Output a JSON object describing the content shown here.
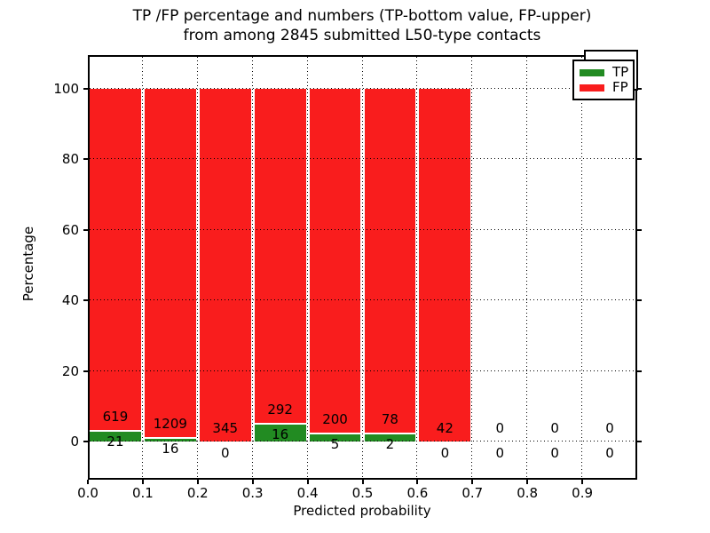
{
  "figure": {
    "title_line1": "TP /FP percentage and numbers (TP-bottom value, FP-upper)",
    "title_line2": "from among 2845 submitted L50-type contacts",
    "xlabel": "Predicted probability",
    "ylabel": "Percentage"
  },
  "legend": {
    "items": [
      {
        "label": "TP",
        "color": "#228B22"
      },
      {
        "label": "FP",
        "color": "#f91d1d"
      }
    ]
  },
  "chart_data": {
    "type": "bar",
    "stacked": true,
    "normalized_to_percent": true,
    "title": "TP /FP percentage and numbers (TP-bottom value, FP-upper) from among 2845 submitted L50-type contacts",
    "xlabel": "Predicted probability",
    "ylabel": "Percentage",
    "xlim": [
      0.0,
      1.0
    ],
    "ylim": [
      -11,
      109
    ],
    "bin_width": 0.1,
    "xticks": [
      "0.0",
      "0.1",
      "0.2",
      "0.3",
      "0.4",
      "0.5",
      "0.6",
      "0.7",
      "0.8",
      "0.9"
    ],
    "yticks": [
      "0",
      "20",
      "40",
      "60",
      "80",
      "100"
    ],
    "grid": "dotted",
    "legend_position": "upper right",
    "bar_edge_color": "#ffffff",
    "colors": {
      "TP": "#228B22",
      "FP": "#f91d1d"
    },
    "categories": [
      0.0,
      0.1,
      0.2,
      0.3,
      0.4,
      0.5,
      0.6,
      0.7,
      0.8,
      0.9
    ],
    "series": [
      {
        "name": "TP",
        "values": [
          21,
          16,
          0,
          16,
          5,
          2,
          0,
          0,
          0,
          0
        ]
      },
      {
        "name": "FP",
        "values": [
          619,
          1209,
          345,
          292,
          200,
          78,
          42,
          0,
          0,
          0
        ]
      }
    ],
    "bar_total_percent_when_nonempty": 100
  }
}
